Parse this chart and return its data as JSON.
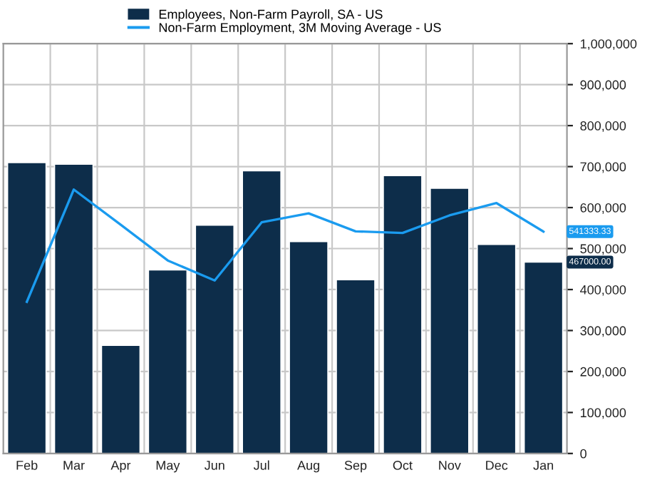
{
  "chart_data": {
    "type": "bar",
    "categories": [
      "Feb",
      "Mar",
      "Apr",
      "May",
      "Jun",
      "Jul",
      "Aug",
      "Sep",
      "Oct",
      "Nov",
      "Dec",
      "Jan"
    ],
    "series": [
      {
        "name": "Employees, Non-Farm Payroll, SA - US",
        "color": "#0d2d4a",
        "values": [
          710000,
          706000,
          264000,
          448000,
          557000,
          690000,
          517000,
          424000,
          678000,
          647000,
          510000,
          467000
        ]
      },
      {
        "name": "Non-Farm Employment, 3M Moving Average - US",
        "type": "line",
        "color": "#1a9bef",
        "values": [
          370000,
          644000,
          558000,
          471000,
          422000,
          564000,
          586000,
          542000,
          538000,
          581000,
          611000,
          541333.33
        ]
      }
    ],
    "annotations": [
      {
        "text": "541333.33",
        "x": "Jan",
        "y": 541333.33
      },
      {
        "text": "467000.00",
        "x": "Jan",
        "y": 467000
      }
    ],
    "ylim": [
      0,
      1000000
    ],
    "yticks": [
      {
        "value": 0,
        "label": "0"
      },
      {
        "value": 100000,
        "label": "100,000"
      },
      {
        "value": 200000,
        "label": "200,000"
      },
      {
        "value": 300000,
        "label": "300,000"
      },
      {
        "value": 400000,
        "label": "400,000"
      },
      {
        "value": 500000,
        "label": "500,000"
      },
      {
        "value": 600000,
        "label": "600,000"
      },
      {
        "value": 700000,
        "label": "700,000"
      },
      {
        "value": 800000,
        "label": "800,000"
      },
      {
        "value": 900000,
        "label": "900,000"
      },
      {
        "value": 1000000,
        "label": "1,000,000"
      }
    ],
    "grid": true,
    "legend": "top",
    "line_style": "solid"
  }
}
